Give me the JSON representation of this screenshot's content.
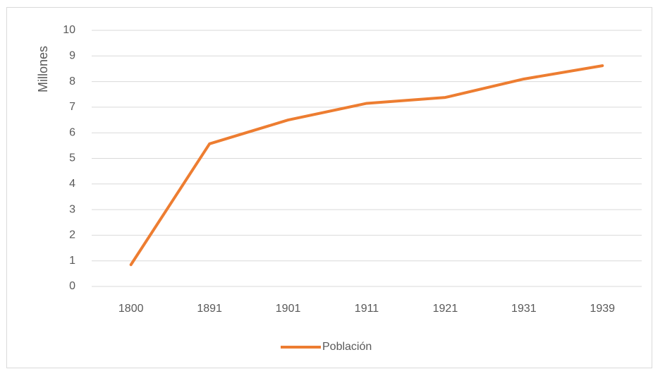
{
  "chart_data": {
    "type": "line",
    "y_label": "Millones",
    "categories": [
      "1800",
      "1891",
      "1901",
      "1911",
      "1921",
      "1931",
      "1939"
    ],
    "series": [
      {
        "name": "Población",
        "color": "#ed7d31",
        "values": [
          0.85,
          5.57,
          6.5,
          7.15,
          7.38,
          8.1,
          8.62
        ]
      }
    ],
    "ylim": [
      0,
      10
    ],
    "yticks": [
      0,
      1,
      2,
      3,
      4,
      5,
      6,
      7,
      8,
      9,
      10
    ],
    "grid": true,
    "legend": "bottom"
  }
}
